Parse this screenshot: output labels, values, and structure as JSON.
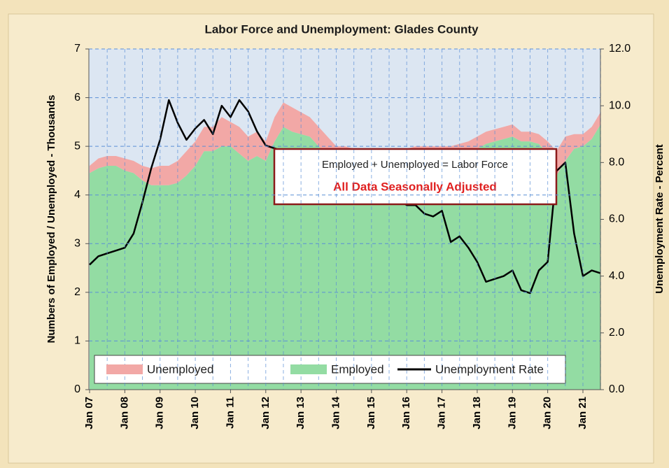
{
  "chart_data": {
    "type": "area",
    "title": "Labor Force and Unemployment: Glades County",
    "y_label": "Numbers of Employed / Unemployed - Thousands",
    "y2_label": "Unemployment Rate - Percent",
    "annotations": [
      "Employed + Unemployed = Labor Force",
      "All Data Seasonally Adjusted"
    ],
    "stacked": true,
    "grid": true,
    "legend": "bottom",
    "categories": [
      "Jan 07",
      null,
      null,
      null,
      "Jan 08",
      null,
      null,
      null,
      "Jan 09",
      null,
      null,
      null,
      "Jan 10",
      null,
      null,
      null,
      "Jan 11",
      null,
      null,
      null,
      "Jan 12",
      null,
      null,
      null,
      "Jan 13",
      null,
      null,
      null,
      "Jan 14",
      null,
      null,
      null,
      "Jan 15",
      null,
      null,
      null,
      "Jan 16",
      null,
      null,
      null,
      "Jan 17",
      null,
      null,
      null,
      "Jan 18",
      null,
      null,
      null,
      "Jan 19",
      null,
      null,
      null,
      "Jan 20",
      null,
      null,
      null,
      "Jan 21",
      null,
      null
    ],
    "series": [
      {
        "name": "Unemployed",
        "type": "area",
        "color": "#f2a8a6",
        "values": [
          0.15,
          0.2,
          0.2,
          0.2,
          0.25,
          0.25,
          0.3,
          0.35,
          0.4,
          0.4,
          0.45,
          0.5,
          0.5,
          0.5,
          0.5,
          0.6,
          0.5,
          0.55,
          0.5,
          0.5,
          0.4,
          0.5,
          0.5,
          0.5,
          0.45,
          0.4,
          0.4,
          0.35,
          0.3,
          0.3,
          0.3,
          0.3,
          0.3,
          0.3,
          0.3,
          0.3,
          0.3,
          0.3,
          0.3,
          0.3,
          0.28,
          0.25,
          0.25,
          0.25,
          0.25,
          0.25,
          0.25,
          0.25,
          0.25,
          0.2,
          0.2,
          0.2,
          0.25,
          0.5,
          0.5,
          0.3,
          0.25,
          0.25,
          0.25
        ]
      },
      {
        "name": "Employed",
        "type": "area",
        "color": "#93dca3",
        "values": [
          4.45,
          4.55,
          4.6,
          4.6,
          4.5,
          4.45,
          4.3,
          4.2,
          4.2,
          4.2,
          4.25,
          4.4,
          4.6,
          4.9,
          4.9,
          5.0,
          5.0,
          4.85,
          4.7,
          4.8,
          4.7,
          5.1,
          5.4,
          5.3,
          5.25,
          5.2,
          5.0,
          4.85,
          4.7,
          4.7,
          4.65,
          4.65,
          4.65,
          4.65,
          4.65,
          4.65,
          4.65,
          4.7,
          4.7,
          4.7,
          4.72,
          4.75,
          4.8,
          4.85,
          4.95,
          5.05,
          5.1,
          5.15,
          5.2,
          5.1,
          5.1,
          5.05,
          4.85,
          4.4,
          4.7,
          4.95,
          5.0,
          5.15,
          5.45
        ]
      },
      {
        "name": "Unemployment Rate",
        "type": "line",
        "axis": "y2",
        "color": "#000000",
        "values": [
          4.4,
          4.7,
          4.8,
          4.9,
          5.0,
          5.5,
          6.6,
          7.8,
          8.8,
          10.2,
          9.4,
          8.8,
          9.2,
          9.5,
          9.0,
          10.0,
          9.6,
          10.2,
          9.8,
          9.1,
          8.6,
          8.5,
          8.4,
          8.3,
          8.2,
          8.0,
          7.8,
          7.6,
          7.4,
          7.3,
          7.2,
          7.1,
          7.0,
          6.9,
          6.8,
          6.7,
          6.5,
          6.5,
          6.2,
          6.1,
          6.3,
          5.2,
          5.4,
          5.0,
          4.5,
          3.8,
          3.9,
          4.0,
          4.2,
          3.5,
          3.4,
          4.2,
          4.5,
          7.7,
          8.0,
          5.5,
          4.0,
          4.2,
          4.1
        ]
      }
    ],
    "ylim": [
      0,
      7
    ],
    "yticks": [
      0,
      1,
      2,
      3,
      4,
      5,
      6,
      7
    ],
    "y2lim": [
      0,
      12
    ],
    "y2ticks": [
      {
        "value": 0,
        "label": "0.0"
      },
      {
        "value": 2,
        "label": "2.0"
      },
      {
        "value": 4,
        "label": "4.0"
      },
      {
        "value": 6,
        "label": "6.0"
      },
      {
        "value": 8,
        "label": "8.0"
      },
      {
        "value": 10,
        "label": "10.0"
      },
      {
        "value": 12,
        "label": "12.0"
      }
    ]
  }
}
